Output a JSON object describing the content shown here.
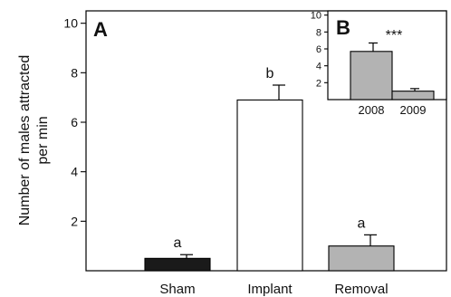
{
  "chart_data": [
    {
      "type": "bar",
      "panel": "A",
      "categories": [
        "Sham",
        "Implant",
        "Removal"
      ],
      "values": [
        0.5,
        6.9,
        1.0
      ],
      "errors": [
        0.15,
        0.6,
        0.45
      ],
      "significance": [
        "a",
        "b",
        "a"
      ],
      "colors": [
        "#1a1a1a",
        "#ffffff",
        "#b3b3b3"
      ],
      "ylabel_lines": [
        "Number of males attracted",
        "per min"
      ],
      "ylim": [
        0,
        10.5
      ],
      "yticks": [
        2,
        4,
        6,
        8,
        10
      ]
    },
    {
      "type": "bar",
      "panel": "B",
      "categories": [
        "2008",
        "2009"
      ],
      "values": [
        5.7,
        1.0
      ],
      "errors": [
        1.0,
        0.3
      ],
      "significance_label": "***",
      "colors": [
        "#b3b3b3",
        "#b3b3b3"
      ],
      "ylim": [
        0,
        10.5
      ],
      "yticks": [
        2,
        4,
        6,
        8,
        10
      ]
    }
  ]
}
